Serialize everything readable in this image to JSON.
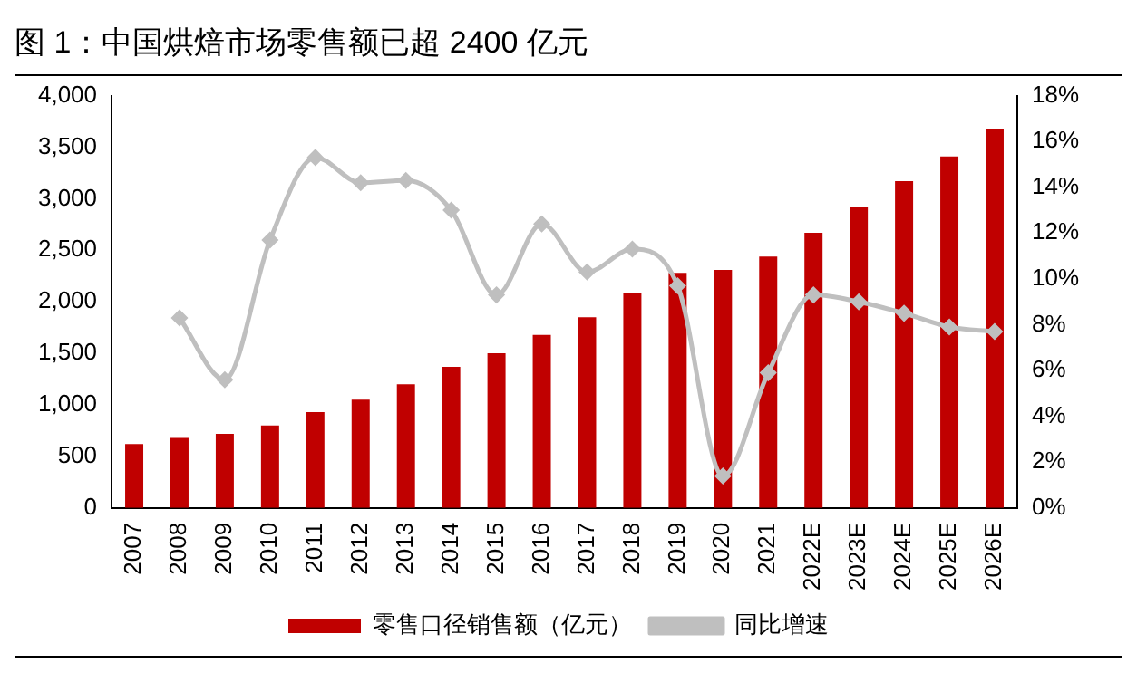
{
  "chart_data": {
    "type": "bar",
    "title": "图 1：中国烘焙市场零售额已超 2400 亿元",
    "categories": [
      "2007",
      "2008",
      "2009",
      "2010",
      "2011",
      "2012",
      "2013",
      "2014",
      "2015",
      "2016",
      "2017",
      "2018",
      "2019",
      "2020",
      "2021",
      "2022E",
      "2023E",
      "2024E",
      "2025E",
      "2026E"
    ],
    "series": [
      {
        "name": "零售口径销售额（亿元）",
        "color": "#c00000",
        "values": [
          620,
          680,
          720,
          800,
          930,
          1050,
          1200,
          1370,
          1500,
          1680,
          1850,
          2080,
          2280,
          2310,
          2440,
          2670,
          2920,
          3170,
          3410,
          3680
        ]
      },
      {
        "name": "同比增速",
        "type": "line",
        "axis": "y2",
        "color": "#bfbfbf",
        "marker": "diamond",
        "values": [
          null,
          8.3,
          5.6,
          11.7,
          15.3,
          14.2,
          14.3,
          13.0,
          9.3,
          12.4,
          10.3,
          11.3,
          9.7,
          1.4,
          5.9,
          9.3,
          9.0,
          8.5,
          7.9,
          7.7
        ]
      }
    ],
    "ylim": [
      0,
      4000
    ],
    "yticks": [
      {
        "value": 0,
        "label": "0"
      },
      {
        "value": 500,
        "label": "500"
      },
      {
        "value": 1000,
        "label": "1,000"
      },
      {
        "value": 1500,
        "label": "1,500"
      },
      {
        "value": 2000,
        "label": "2,000"
      },
      {
        "value": 2500,
        "label": "2,500"
      },
      {
        "value": 3000,
        "label": "3,000"
      },
      {
        "value": 3500,
        "label": "3,500"
      },
      {
        "value": 4000,
        "label": "4,000"
      }
    ],
    "y2lim": [
      0,
      18
    ],
    "y2ticks": [
      {
        "value": 0,
        "label": "0%"
      },
      {
        "value": 2,
        "label": "2%"
      },
      {
        "value": 4,
        "label": "4%"
      },
      {
        "value": 6,
        "label": "6%"
      },
      {
        "value": 8,
        "label": "8%"
      },
      {
        "value": 10,
        "label": "10%"
      },
      {
        "value": 12,
        "label": "12%"
      },
      {
        "value": 14,
        "label": "14%"
      },
      {
        "value": 16,
        "label": "16%"
      },
      {
        "value": 18,
        "label": "18%"
      }
    ],
    "legend": "bottom"
  }
}
